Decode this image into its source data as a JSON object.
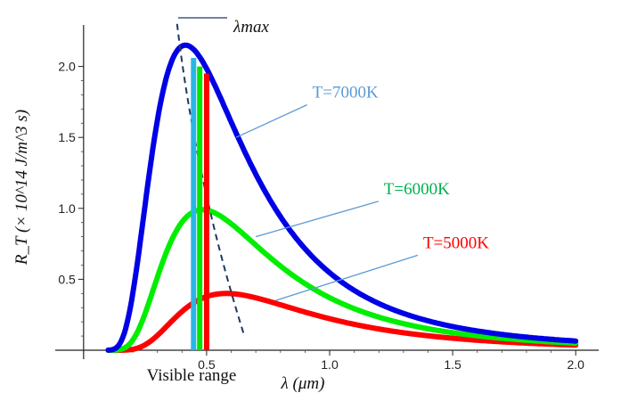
{
  "chart_data": {
    "type": "line",
    "title": "",
    "xlabel": "λ (μm)",
    "ylabel": "R_T (× 10^14 J/m^3 s)",
    "xlim": [
      -0.05,
      2.05
    ],
    "ylim": [
      0,
      2.28
    ],
    "x_ticks": [
      0.5,
      1.0,
      1.5,
      2.0
    ],
    "x_tick_labels": [
      "0.5",
      "1.0",
      "1.5",
      "2.0"
    ],
    "y_ticks": [
      0.5,
      1.0,
      1.5,
      2.0
    ],
    "y_tick_labels": [
      "0.5",
      "1.0",
      "1.5",
      "2.0"
    ],
    "grid": false,
    "series": [
      {
        "name": "T=7000K",
        "color": "#0000e6",
        "label_color": "#5b9bd5",
        "peak_x": 0.414,
        "peak_y": 2.15
      },
      {
        "name": "T=6000K",
        "color": "#00ee00",
        "label_color": "#00b050",
        "peak_x": 0.483,
        "peak_y": 0.99
      },
      {
        "name": "T=5000K",
        "color": "#ff0000",
        "label_color": "#ff0000",
        "peak_x": 0.58,
        "peak_y": 0.4
      }
    ],
    "wien_line": {
      "name": "λmax",
      "x": [
        0.38,
        0.65
      ],
      "y": [
        2.3,
        0.12
      ],
      "color": "#1f3864"
    },
    "visible_range": {
      "label": "Visible range",
      "bars": [
        {
          "x": 0.447,
          "top": 2.06,
          "color": "#29b6e6"
        },
        {
          "x": 0.472,
          "top": 2.0,
          "color": "#00e600"
        },
        {
          "x": 0.5,
          "top": 1.95,
          "color": "#ff0000"
        }
      ]
    },
    "annotations": [
      {
        "text": "T=7000K",
        "x": 0.93,
        "y": 1.78,
        "point_x": 0.62,
        "point_y": 1.5,
        "color": "#5b9bd5"
      },
      {
        "text": "T=6000K",
        "x": 1.22,
        "y": 1.1,
        "point_x": 0.7,
        "point_y": 0.8,
        "color": "#00b050"
      },
      {
        "text": "T=5000K",
        "x": 1.38,
        "y": 0.72,
        "point_x": 0.78,
        "point_y": 0.35,
        "color": "#ff0000"
      }
    ],
    "lambda_label": "λmax"
  }
}
